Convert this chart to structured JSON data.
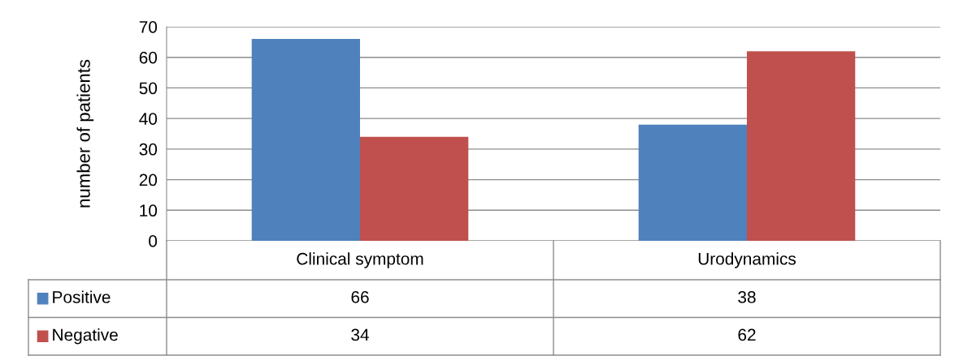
{
  "chart_data": {
    "type": "bar",
    "ylabel": "number of patients",
    "categories": [
      "Clinical symptom",
      "Urodynamics"
    ],
    "series": [
      {
        "name": "Positive",
        "color": "#4f81bd",
        "values": [
          66,
          38
        ]
      },
      {
        "name": "Negative",
        "color": "#c0504d",
        "values": [
          34,
          62
        ]
      }
    ],
    "ylim": [
      0,
      70
    ],
    "yticks": [
      0,
      10,
      20,
      30,
      40,
      50,
      60,
      70
    ],
    "grid": "y",
    "legend": "bottom",
    "data_labels": true
  }
}
